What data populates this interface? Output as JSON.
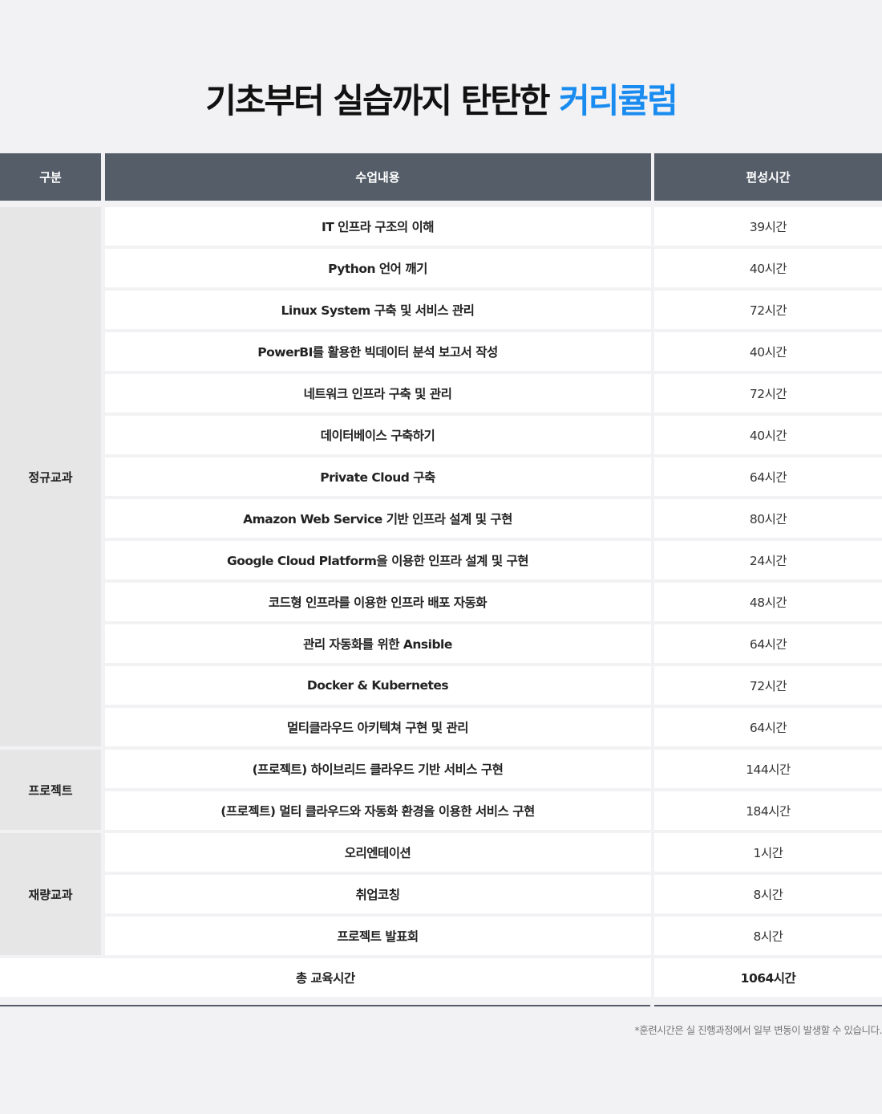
{
  "title": {
    "main": "기초부터 실습까지 탄탄한",
    "highlight": "커리큘럼"
  },
  "colors": {
    "accent": "#1a8cf0",
    "header_bg": "#555d69"
  },
  "headers": [
    "구분",
    "수업내용",
    "편성시간"
  ],
  "groups": [
    {
      "category": "정규교과",
      "rows": [
        {
          "name": "IT 인프라 구조의 이해",
          "hours": "39시간"
        },
        {
          "name": "Python 언어 깨기",
          "hours": "40시간"
        },
        {
          "name": "Linux System 구축 및 서비스 관리",
          "hours": "72시간"
        },
        {
          "name": "PowerBI를 활용한 빅데이터 분석 보고서 작성",
          "hours": "40시간"
        },
        {
          "name": "네트워크 인프라 구축 및 관리",
          "hours": "72시간"
        },
        {
          "name": "데이터베이스 구축하기",
          "hours": "40시간"
        },
        {
          "name": "Private Cloud 구축",
          "hours": "64시간"
        },
        {
          "name": "Amazon Web Service 기반 인프라 설계 및 구현",
          "hours": "80시간"
        },
        {
          "name": "Google Cloud Platform을 이용한 인프라 설계 및 구현",
          "hours": "24시간"
        },
        {
          "name": "코드형 인프라를 이용한 인프라 배포 자동화",
          "hours": "48시간"
        },
        {
          "name": "관리 자동화를 위한 Ansible",
          "hours": "64시간"
        },
        {
          "name": "Docker & Kubernetes",
          "hours": "72시간"
        },
        {
          "name": "멀티클라우드 아키텍쳐 구현 및 관리",
          "hours": "64시간"
        }
      ]
    },
    {
      "category": "프로젝트",
      "rows": [
        {
          "name": "(프로젝트) 하이브리드 클라우드 기반 서비스 구현",
          "hours": "144시간"
        },
        {
          "name": "(프로젝트) 멀티 클라우드와 자동화 환경을 이용한 서비스 구현",
          "hours": "184시간"
        }
      ]
    },
    {
      "category": "재량교과",
      "rows": [
        {
          "name": "오리엔테이션",
          "hours": "1시간"
        },
        {
          "name": "취업코칭",
          "hours": "8시간"
        },
        {
          "name": "프로젝트 발표회",
          "hours": "8시간"
        }
      ]
    }
  ],
  "total": {
    "label": "총 교육시간",
    "hours": "1064시간"
  },
  "note": "*훈련시간은 실 진행과정에서 일부 변동이 발생할 수 있습니다."
}
